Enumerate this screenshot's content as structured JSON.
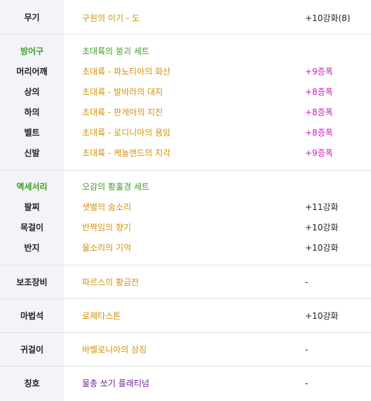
{
  "rows": {
    "weapon": {
      "label": "무기",
      "item": "구원의 이기 - 도",
      "value": "+10강화(8)"
    },
    "armor_header": {
      "label": "방어구",
      "set": "초대륙의 붕괴 세트"
    },
    "helmet": {
      "label": "머리어깨",
      "item": "초대륙 - 파노티아의 화산",
      "value": "+9증폭"
    },
    "top": {
      "label": "상의",
      "item": "초대륙 - 발바라의 대지",
      "value": "+8증폭"
    },
    "bottom": {
      "label": "하의",
      "item": "초대륙 - 판게아의 지진",
      "value": "+8증폭"
    },
    "belt": {
      "label": "벨트",
      "item": "초대륙 - 로디니아의 용암",
      "value": "+8증폭"
    },
    "shoes": {
      "label": "신발",
      "item": "초대륙 - 케놀랜드의 지각",
      "value": "+9증폭"
    },
    "acc_header": {
      "label": "액세서리",
      "set": "오감의 황홀경 세트"
    },
    "bracelet": {
      "label": "팔찌",
      "item": "샛별의 숨소리",
      "value": "+11강화"
    },
    "necklace": {
      "label": "목걸이",
      "item": "반짝임의 향기",
      "value": "+10강화"
    },
    "ring": {
      "label": "반지",
      "item": "물소리의 기억",
      "value": "+10강화"
    },
    "support": {
      "label": "보조장비",
      "item": "파르스의 황금잔",
      "value": "-"
    },
    "magicstone": {
      "label": "마법석",
      "item": "로제타스톤",
      "value": "+10강화"
    },
    "earring": {
      "label": "귀걸이",
      "item": "바벨로니아의 상징",
      "value": "-"
    },
    "title": {
      "label": "칭호",
      "item": "물총 쏘기 플래티넘",
      "value": "-"
    }
  },
  "colors": {
    "item_orange": "#d2900a",
    "set_green": "#3f9e23",
    "amp_magenta": "#c21fba",
    "title_purple": "#6e1f9a",
    "left_bg": "#f3f4f8"
  }
}
